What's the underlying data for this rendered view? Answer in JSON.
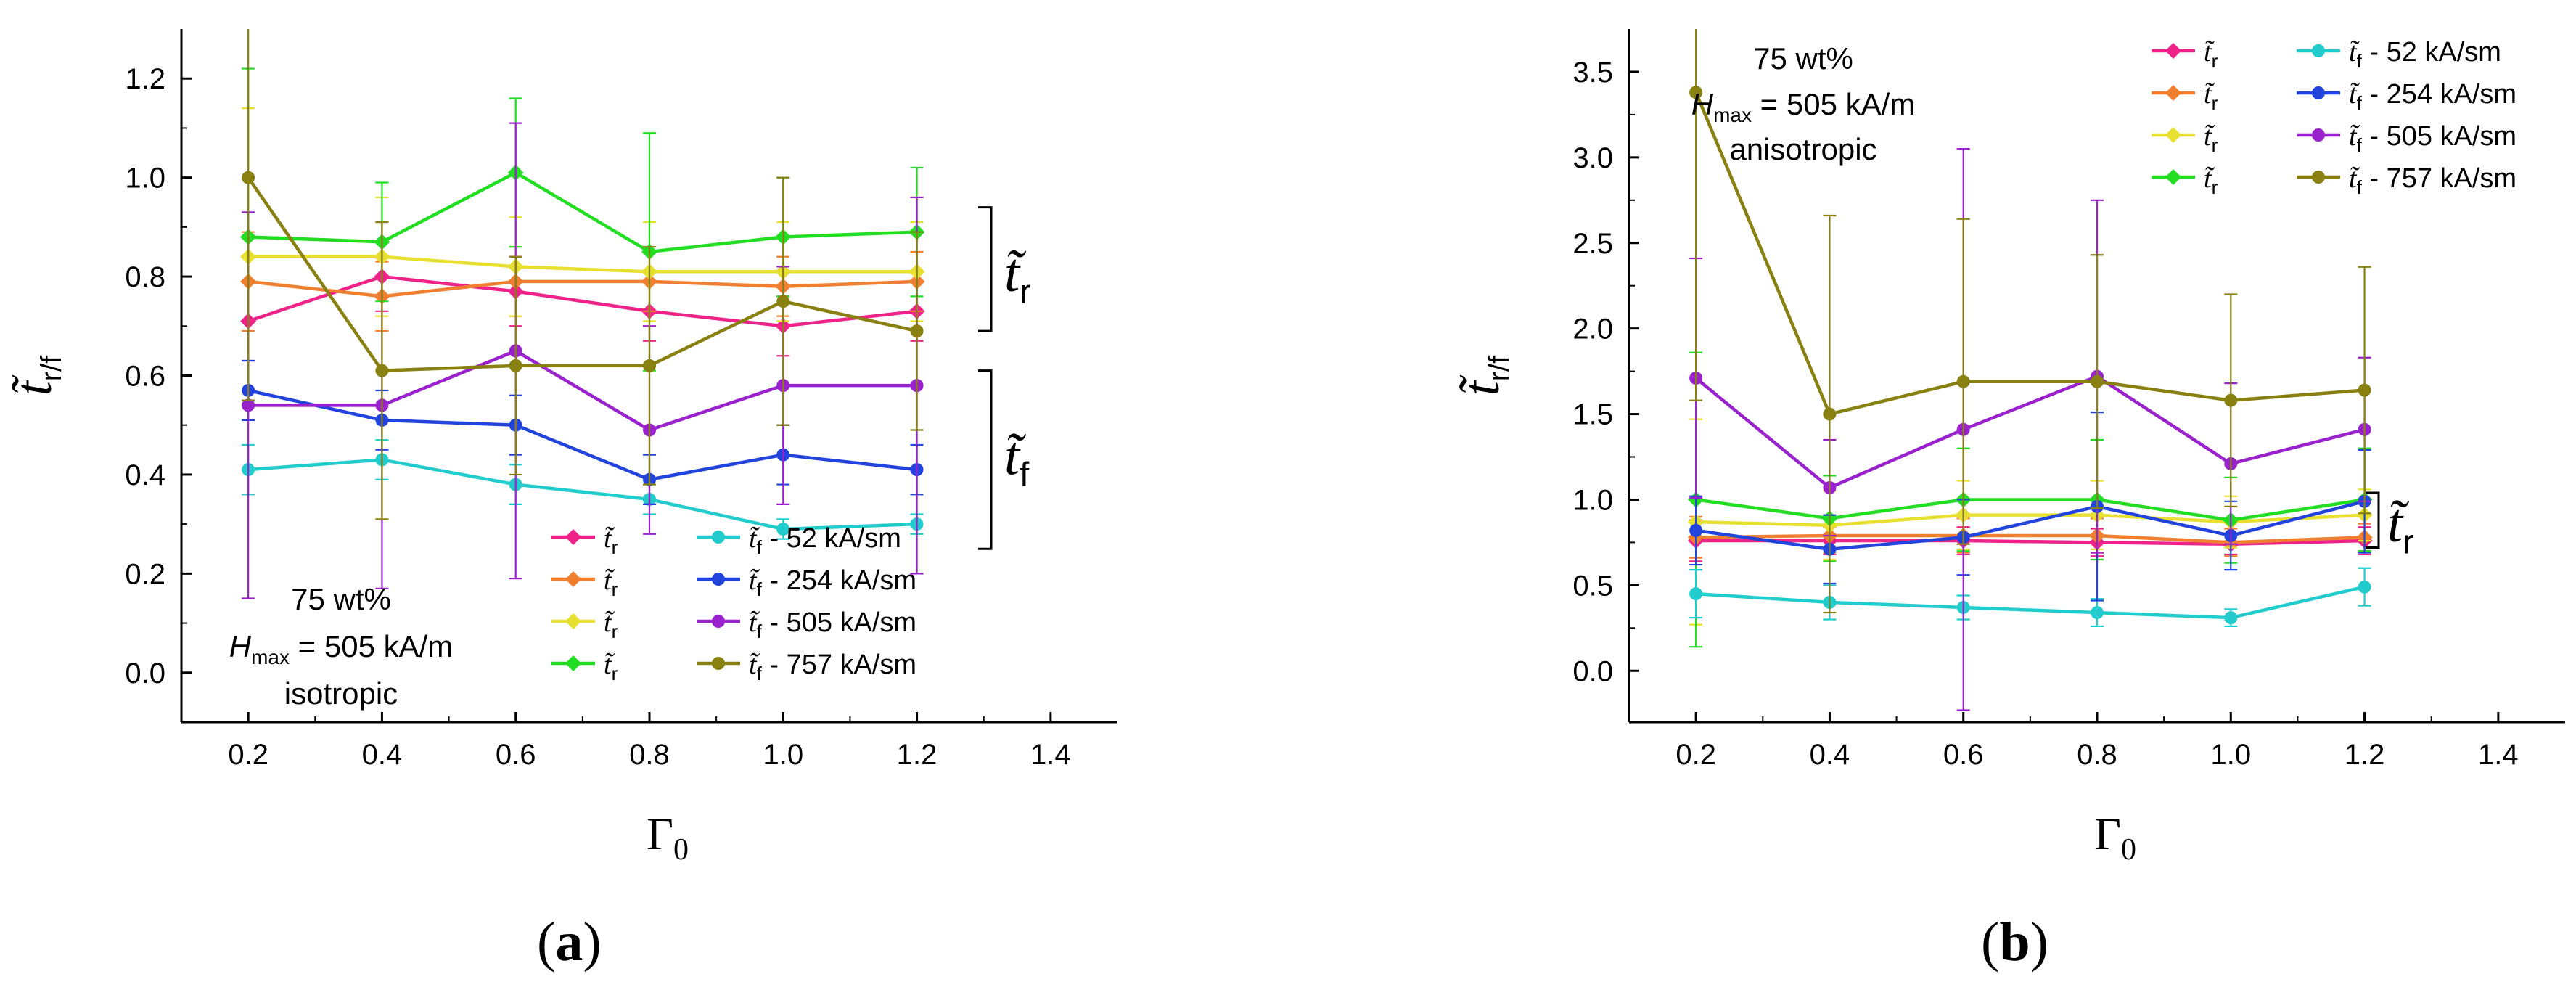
{
  "figure": {
    "label_a": "a",
    "label_b": "b"
  },
  "chart_data": [
    {
      "type": "line",
      "panel": "a",
      "xlabel": "Γ0",
      "ylabel": "t̃r/f",
      "xlim": [
        0.1,
        1.5
      ],
      "ylim": [
        -0.1,
        1.3
      ],
      "xticks": [
        0.2,
        0.4,
        0.6,
        0.8,
        1.0,
        1.2,
        1.4
      ],
      "yticks": [
        0.0,
        0.2,
        0.4,
        0.6,
        0.8,
        1.0,
        1.2
      ],
      "x": [
        0.2,
        0.4,
        0.6,
        0.8,
        1.0,
        1.2
      ],
      "annotation": {
        "line1": "75 wt%",
        "hmax_prefix": "H",
        "hmax_sub": "max",
        "hmax_value": " = 505 kA/m",
        "mode": "isotropic"
      },
      "bracket_r": {
        "label": "t̃",
        "sub": "r"
      },
      "bracket_f": {
        "label": "t̃",
        "sub": "f"
      },
      "series": [
        {
          "name": "t̃r",
          "kind": "r",
          "color": "#ee2288",
          "marker": "diamond",
          "values": [
            0.71,
            0.8,
            0.77,
            0.73,
            0.7,
            0.73
          ],
          "err": [
            0.08,
            0.07,
            0.07,
            0.06,
            0.06,
            0.06
          ]
        },
        {
          "name": "t̃r",
          "kind": "r",
          "color": "#f08030",
          "marker": "diamond",
          "values": [
            0.79,
            0.76,
            0.79,
            0.79,
            0.78,
            0.79
          ],
          "err": [
            0.1,
            0.07,
            0.07,
            0.06,
            0.06,
            0.06
          ]
        },
        {
          "name": "t̃r",
          "kind": "r",
          "color": "#e8e030",
          "marker": "diamond",
          "values": [
            0.84,
            0.84,
            0.82,
            0.81,
            0.81,
            0.81
          ],
          "err": [
            0.3,
            0.12,
            0.1,
            0.1,
            0.1,
            0.1
          ]
        },
        {
          "name": "t̃r",
          "kind": "r",
          "color": "#22dd22",
          "marker": "diamond",
          "values": [
            0.88,
            0.87,
            1.01,
            0.85,
            0.88,
            0.89
          ],
          "err": [
            0.34,
            0.12,
            0.15,
            0.24,
            0.12,
            0.13
          ]
        },
        {
          "name": "t̃f - 52 kA/sm",
          "kind": "f",
          "label": "52 kA/sm",
          "color": "#22cccc",
          "marker": "circle",
          "values": [
            0.41,
            0.43,
            0.38,
            0.35,
            0.29,
            0.3
          ],
          "err": [
            0.05,
            0.04,
            0.04,
            0.03,
            0.02,
            0.02
          ]
        },
        {
          "name": "t̃f - 254 kA/sm",
          "kind": "f",
          "label": "254 kA/sm",
          "color": "#2244dd",
          "marker": "circle",
          "values": [
            0.57,
            0.51,
            0.5,
            0.39,
            0.44,
            0.41
          ],
          "err": [
            0.06,
            0.06,
            0.06,
            0.05,
            0.06,
            0.05
          ]
        },
        {
          "name": "t̃f - 505 kA/sm",
          "kind": "f",
          "label": "505 kA/sm",
          "color": "#9922cc",
          "marker": "circle",
          "values": [
            0.54,
            0.54,
            0.65,
            0.49,
            0.58,
            0.58
          ],
          "err": [
            0.39,
            0.37,
            0.46,
            0.21,
            0.24,
            0.38
          ]
        },
        {
          "name": "t̃f - 757 kA/sm",
          "kind": "f",
          "label": "757 kA/sm",
          "color": "#888010",
          "marker": "circle",
          "values": [
            1.0,
            0.61,
            0.62,
            0.62,
            0.75,
            0.69
          ],
          "err": [
            0.45,
            0.3,
            0.22,
            0.24,
            0.25,
            0.2
          ]
        }
      ]
    },
    {
      "type": "line",
      "panel": "b",
      "xlabel": "Γ0",
      "ylabel": "t̃r/f",
      "xlim": [
        0.1,
        1.5
      ],
      "ylim": [
        -0.3,
        3.75
      ],
      "xticks": [
        0.2,
        0.4,
        0.6,
        0.8,
        1.0,
        1.2,
        1.4
      ],
      "yticks": [
        0.0,
        0.5,
        1.0,
        1.5,
        2.0,
        2.5,
        3.0,
        3.5
      ],
      "x": [
        0.2,
        0.4,
        0.6,
        0.8,
        1.0,
        1.2
      ],
      "annotation": {
        "line1": "75 wt%",
        "hmax_prefix": "H",
        "hmax_sub": "max",
        "hmax_value": " = 505 kA/m",
        "mode": "anisotropic"
      },
      "bracket_r": {
        "label": "t̃",
        "sub": "r"
      },
      "series": [
        {
          "name": "t̃r",
          "kind": "r",
          "color": "#ee2288",
          "marker": "diamond",
          "values": [
            0.76,
            0.76,
            0.76,
            0.75,
            0.74,
            0.76
          ],
          "err": [
            0.12,
            0.08,
            0.08,
            0.08,
            0.06,
            0.08
          ]
        },
        {
          "name": "t̃r",
          "kind": "r",
          "color": "#f08030",
          "marker": "diamond",
          "values": [
            0.78,
            0.79,
            0.79,
            0.79,
            0.75,
            0.78
          ],
          "err": [
            0.12,
            0.1,
            0.1,
            0.1,
            0.08,
            0.08
          ]
        },
        {
          "name": "t̃r",
          "kind": "r",
          "color": "#e8e030",
          "marker": "diamond",
          "values": [
            0.87,
            0.85,
            0.91,
            0.91,
            0.87,
            0.91
          ],
          "err": [
            0.6,
            0.2,
            0.2,
            0.2,
            0.15,
            0.15
          ]
        },
        {
          "name": "t̃r",
          "kind": "r",
          "color": "#22dd22",
          "marker": "diamond",
          "values": [
            1.0,
            0.89,
            1.0,
            1.0,
            0.88,
            1.0
          ],
          "err": [
            0.86,
            0.25,
            0.3,
            0.35,
            0.25,
            0.3
          ]
        },
        {
          "name": "t̃f - 52 kA/sm",
          "kind": "f",
          "label": "52 kA/sm",
          "color": "#22cccc",
          "marker": "circle",
          "values": [
            0.45,
            0.4,
            0.37,
            0.34,
            0.31,
            0.49
          ],
          "err": [
            0.14,
            0.1,
            0.07,
            0.08,
            0.05,
            0.11
          ]
        },
        {
          "name": "t̃f - 254 kA/sm",
          "kind": "f",
          "label": "254 kA/sm",
          "color": "#2244dd",
          "marker": "circle",
          "values": [
            0.82,
            0.71,
            0.78,
            0.96,
            0.79,
            0.99
          ],
          "err": [
            0.2,
            0.2,
            0.22,
            0.55,
            0.2,
            0.3
          ]
        },
        {
          "name": "t̃f - 505 kA/sm",
          "kind": "f",
          "label": "505 kA/sm",
          "color": "#9922cc",
          "marker": "circle",
          "values": [
            1.71,
            1.07,
            1.41,
            1.72,
            1.21,
            1.41
          ],
          "err": [
            0.7,
            0.28,
            1.64,
            1.03,
            0.47,
            0.42
          ]
        },
        {
          "name": "t̃f - 757 kA/sm",
          "kind": "f",
          "label": "757 kA/sm",
          "color": "#888010",
          "marker": "circle",
          "values": [
            3.38,
            1.5,
            1.69,
            1.69,
            1.58,
            1.64
          ],
          "err": [
            1.8,
            1.16,
            0.95,
            0.74,
            0.62,
            0.72
          ]
        }
      ]
    }
  ]
}
